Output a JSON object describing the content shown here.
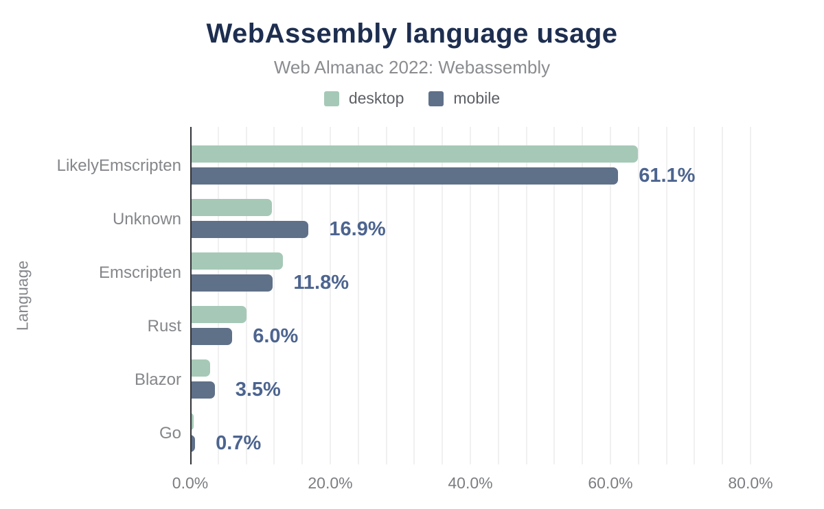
{
  "header": {
    "title": "WebAssembly language usage",
    "subtitle": "Web Almanac 2022: Webassembly"
  },
  "colors": {
    "title": "#1d2e50",
    "subtitle": "#8a8c8f",
    "desktop_bar": "#a6c9b7",
    "mobile_bar": "#5f7089",
    "value_label": "#4c648f",
    "axis_line": "#313337",
    "gridline": "#f0f0f0",
    "axis_text": "#85878b"
  },
  "chart_data": {
    "type": "bar",
    "orientation": "horizontal",
    "title": "WebAssembly language usage",
    "subtitle": "Web Almanac 2022: Webassembly",
    "ylabel": "Language",
    "xlabel": "",
    "categories": [
      "LikelyEmscripten",
      "Unknown",
      "Emscripten",
      "Rust",
      "Blazor",
      "Go"
    ],
    "series": [
      {
        "name": "desktop",
        "color": "#a6c9b7",
        "values": [
          63.9,
          11.7,
          13.2,
          8.0,
          2.8,
          0.5
        ]
      },
      {
        "name": "mobile",
        "color": "#5f7089",
        "values": [
          61.1,
          16.9,
          11.8,
          6.0,
          3.5,
          0.7
        ]
      }
    ],
    "bar_labels": [
      "61.1%",
      "16.9%",
      "11.8%",
      "6.0%",
      "3.5%",
      "0.7%"
    ],
    "bar_labels_refer_to": "mobile",
    "x_ticks": [
      "0.0%",
      "20.0%",
      "40.0%",
      "60.0%",
      "80.0%"
    ],
    "xlim": [
      0,
      80
    ],
    "grid": "vertical lines every 4%",
    "legend_position": "top",
    "legend": [
      "desktop",
      "mobile"
    ]
  }
}
